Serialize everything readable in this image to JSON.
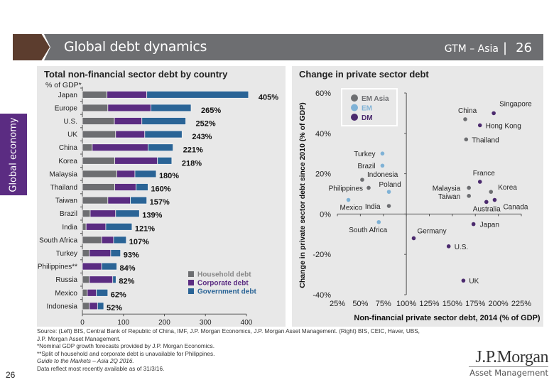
{
  "header": {
    "title": "Global debt dynamics",
    "section": "GTM – Asia",
    "page": "26"
  },
  "sidetab": {
    "label": "Global economy"
  },
  "left_panel": {
    "title": "Total non-financial sector debt by country",
    "subtitle": "% of GDP*"
  },
  "right_panel": {
    "title": "Change in private sector debt"
  },
  "chart_data": [
    {
      "type": "bar",
      "orientation": "horizontal",
      "stacked": true,
      "title": "Total non-financial sector debt by country",
      "ylabel": "% of GDP*",
      "xlim": [
        0,
        400
      ],
      "xticks": [
        0,
        100,
        200,
        300,
        400
      ],
      "categories": [
        "Japan",
        "Europe",
        "U.S.",
        "UK",
        "China",
        "Korea",
        "Malaysia",
        "Thailand",
        "Taiwan",
        "Brazil",
        "India",
        "South Africa",
        "Turkey",
        "Philippines**",
        "Russia",
        "Mexico",
        "Indonesia"
      ],
      "series": [
        {
          "name": "Household debt",
          "color": "#6d6e71",
          "values": [
            60,
            62,
            78,
            81,
            24,
            79,
            84,
            79,
            62,
            19,
            9,
            47,
            17,
            0,
            17,
            12,
            17
          ]
        },
        {
          "name": "Corporate debt",
          "color": "#5b2c82",
          "values": [
            97,
            105,
            67,
            71,
            136,
            104,
            44,
            52,
            55,
            62,
            48,
            29,
            52,
            47,
            57,
            22,
            20
          ]
        },
        {
          "name": "Government debt",
          "color": "#2a6496",
          "values": [
            248,
            98,
            107,
            91,
            61,
            35,
            52,
            29,
            40,
            58,
            64,
            31,
            24,
            37,
            8,
            28,
            15
          ]
        }
      ],
      "totals": [
        405,
        265,
        252,
        243,
        221,
        218,
        180,
        160,
        157,
        139,
        121,
        107,
        93,
        84,
        82,
        62,
        52
      ],
      "total_labels": [
        "405%",
        "265%",
        "252%",
        "243%",
        "221%",
        "218%",
        "180%",
        "160%",
        "157%",
        "139%",
        "121%",
        "107%",
        "93%",
        "84%",
        "82%",
        "62%",
        "52%"
      ],
      "legend": {
        "position": "bottom-right",
        "entries": [
          "Household debt",
          "Corporate debt",
          "Government debt"
        ]
      }
    },
    {
      "type": "scatter",
      "title": "Change in private sector debt",
      "xlabel": "Non-financial private sector debt, 2014 (% of GDP)",
      "ylabel": "Change in private sector debt since 2010 (% of GDP)",
      "xlim": [
        25,
        225
      ],
      "ylim": [
        -40,
        60
      ],
      "xticks": [
        "25%",
        "50%",
        "75%",
        "100%",
        "125%",
        "150%",
        "175%",
        "200%",
        "225%"
      ],
      "yticks": [
        "60%",
        "40%",
        "20%",
        "0%",
        "-20%",
        "-40%"
      ],
      "axis_cross": {
        "x": 100,
        "y": 0
      },
      "legend": {
        "position": "top-left",
        "entries": [
          {
            "name": "EM Asia",
            "color": "#6d6e71"
          },
          {
            "name": "EM",
            "color": "#7fb2d6"
          },
          {
            "name": "DM",
            "color": "#4b2a6e"
          }
        ]
      },
      "points": [
        {
          "label": "Singapore",
          "group": "DM",
          "x": 195,
          "y": 50
        },
        {
          "label": "China",
          "group": "EM Asia",
          "x": 164,
          "y": 47
        },
        {
          "label": "Hong Kong",
          "group": "DM",
          "x": 180,
          "y": 44
        },
        {
          "label": "Thailand",
          "group": "EM Asia",
          "x": 165,
          "y": 37
        },
        {
          "label": "Turkey",
          "group": "EM",
          "x": 74,
          "y": 30
        },
        {
          "label": "Brazil",
          "group": "EM",
          "x": 74,
          "y": 24
        },
        {
          "label": "Indonesia",
          "group": "EM Asia",
          "x": 52,
          "y": 17
        },
        {
          "label": "Philippines",
          "group": "EM Asia",
          "x": 59,
          "y": 13
        },
        {
          "label": "Poland",
          "group": "EM",
          "x": 81,
          "y": 11
        },
        {
          "label": "Mexico",
          "group": "EM",
          "x": 37,
          "y": 7
        },
        {
          "label": "India",
          "group": "EM Asia",
          "x": 81,
          "y": 4
        },
        {
          "label": "South Africa",
          "group": "EM",
          "x": 70,
          "y": -4
        },
        {
          "label": "France",
          "group": "DM",
          "x": 180,
          "y": 16
        },
        {
          "label": "Malaysia",
          "group": "EM Asia",
          "x": 168,
          "y": 13
        },
        {
          "label": "Korea",
          "group": "EM Asia",
          "x": 192,
          "y": 11
        },
        {
          "label": "Taiwan",
          "group": "EM Asia",
          "x": 168,
          "y": 9
        },
        {
          "label": "Australia",
          "group": "DM",
          "x": 187,
          "y": 6
        },
        {
          "label": "Canada",
          "group": "DM",
          "x": 196,
          "y": 7
        },
        {
          "label": "Japan",
          "group": "DM",
          "x": 173,
          "y": -5
        },
        {
          "label": "Germany",
          "group": "DM",
          "x": 108,
          "y": -12
        },
        {
          "label": "U.S.",
          "group": "DM",
          "x": 146,
          "y": -16
        },
        {
          "label": "UK",
          "group": "DM",
          "x": 162,
          "y": -33
        }
      ]
    }
  ],
  "footnotes": {
    "source": "Source: (Left) BIS, Central Bank of Republic of China, IMF, J.P. Morgan Economics, J.P. Morgan Asset Management. (Right) BIS, CEIC, Haver, UBS,",
    "source2": "J.P. Morgan Asset Management.",
    "note1": "*Nominal GDP growth forecasts provided by J.P. Morgan Economics.",
    "note2": "**Split of household and corporate debt is unavailable for Philippines.",
    "guide": "Guide to the Markets – Asia 2Q 2016.",
    "asof": "Data reflect most recently available as of 31/3/16."
  },
  "footer": {
    "page": "26",
    "logo_main": "J.P.Morgan",
    "logo_sub": "Asset Management"
  }
}
